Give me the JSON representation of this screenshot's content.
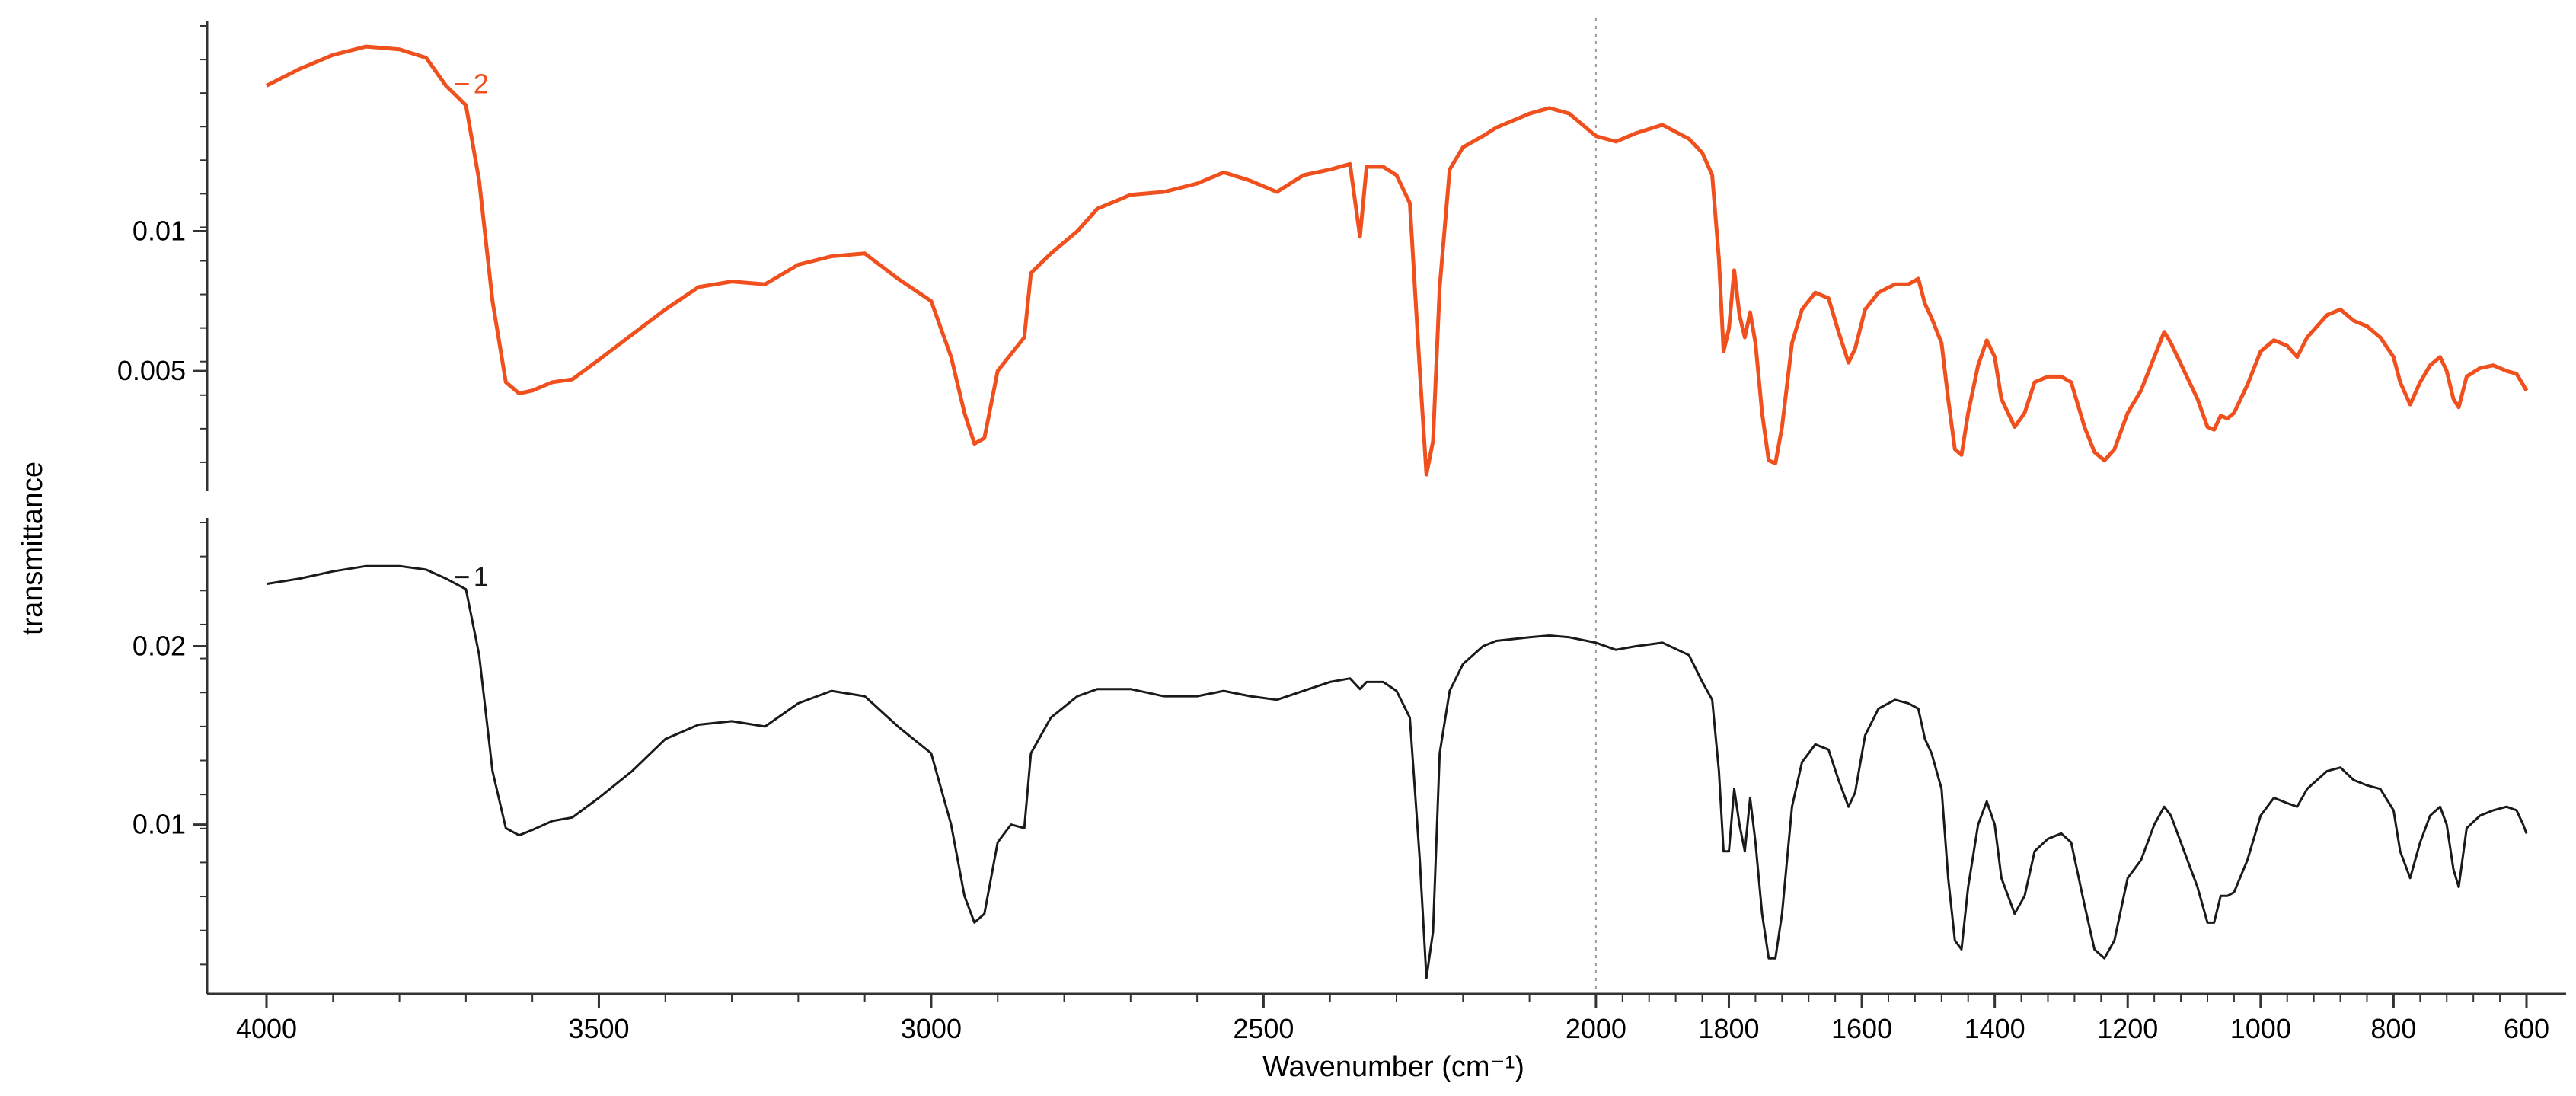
{
  "chart_data": {
    "type": "line",
    "xlabel": "Wavenumber (cm⁻¹)",
    "ylabel": "transmittance",
    "x_reversed": true,
    "xlim": [
      4000,
      600
    ],
    "xticks": [
      4000,
      3500,
      3000,
      2500,
      2000,
      1800,
      1600,
      1400,
      1200,
      1000,
      800,
      600
    ],
    "reference_line": {
      "x": 2000,
      "style": "dotted"
    },
    "panels": [
      {
        "id": "top",
        "series_tag": "2",
        "color": "#f0501e",
        "ylim": [
          0.0007,
          0.0175
        ],
        "yticks": [
          0.005,
          0.01
        ],
        "ytick_labels": [
          "0.005",
          "0.01"
        ],
        "points": [
          [
            4000,
            0.0152
          ],
          [
            3950,
            0.0158
          ],
          [
            3900,
            0.0163
          ],
          [
            3850,
            0.0166
          ],
          [
            3800,
            0.0165
          ],
          [
            3760,
            0.0162
          ],
          [
            3730,
            0.0152
          ],
          [
            3700,
            0.0145
          ],
          [
            3680,
            0.0118
          ],
          [
            3660,
            0.0075
          ],
          [
            3640,
            0.0046
          ],
          [
            3620,
            0.0042
          ],
          [
            3600,
            0.0043
          ],
          [
            3570,
            0.0046
          ],
          [
            3540,
            0.0047
          ],
          [
            3500,
            0.0054
          ],
          [
            3450,
            0.0063
          ],
          [
            3400,
            0.0072
          ],
          [
            3350,
            0.008
          ],
          [
            3300,
            0.0082
          ],
          [
            3250,
            0.0081
          ],
          [
            3200,
            0.0088
          ],
          [
            3150,
            0.0091
          ],
          [
            3100,
            0.0092
          ],
          [
            3050,
            0.0083
          ],
          [
            3000,
            0.0075
          ],
          [
            2970,
            0.0055
          ],
          [
            2950,
            0.0035
          ],
          [
            2935,
            0.0024
          ],
          [
            2920,
            0.0026
          ],
          [
            2900,
            0.005
          ],
          [
            2880,
            0.0056
          ],
          [
            2860,
            0.0062
          ],
          [
            2850,
            0.0085
          ],
          [
            2820,
            0.0092
          ],
          [
            2780,
            0.01
          ],
          [
            2750,
            0.0108
          ],
          [
            2700,
            0.0113
          ],
          [
            2650,
            0.0114
          ],
          [
            2600,
            0.0117
          ],
          [
            2560,
            0.0121
          ],
          [
            2520,
            0.0118
          ],
          [
            2480,
            0.0114
          ],
          [
            2440,
            0.012
          ],
          [
            2400,
            0.0122
          ],
          [
            2370,
            0.0124
          ],
          [
            2355,
            0.0098
          ],
          [
            2345,
            0.0123
          ],
          [
            2320,
            0.0123
          ],
          [
            2300,
            0.012
          ],
          [
            2280,
            0.011
          ],
          [
            2265,
            0.005
          ],
          [
            2255,
            0.0013
          ],
          [
            2245,
            0.0025
          ],
          [
            2235,
            0.008
          ],
          [
            2220,
            0.0122
          ],
          [
            2200,
            0.013
          ],
          [
            2170,
            0.0134
          ],
          [
            2150,
            0.0137
          ],
          [
            2100,
            0.0142
          ],
          [
            2070,
            0.0144
          ],
          [
            2040,
            0.0142
          ],
          [
            2000,
            0.0134
          ],
          [
            1970,
            0.0132
          ],
          [
            1940,
            0.0135
          ],
          [
            1900,
            0.0138
          ],
          [
            1860,
            0.0133
          ],
          [
            1840,
            0.0128
          ],
          [
            1825,
            0.012
          ],
          [
            1815,
            0.009
          ],
          [
            1808,
            0.0057
          ],
          [
            1800,
            0.0065
          ],
          [
            1792,
            0.0086
          ],
          [
            1784,
            0.007
          ],
          [
            1776,
            0.0062
          ],
          [
            1768,
            0.0071
          ],
          [
            1760,
            0.006
          ],
          [
            1750,
            0.0035
          ],
          [
            1740,
            0.0018
          ],
          [
            1730,
            0.0017
          ],
          [
            1720,
            0.003
          ],
          [
            1705,
            0.006
          ],
          [
            1690,
            0.0072
          ],
          [
            1670,
            0.0078
          ],
          [
            1650,
            0.0076
          ],
          [
            1635,
            0.0064
          ],
          [
            1620,
            0.0053
          ],
          [
            1610,
            0.0058
          ],
          [
            1595,
            0.0072
          ],
          [
            1575,
            0.0078
          ],
          [
            1550,
            0.0081
          ],
          [
            1530,
            0.0081
          ],
          [
            1515,
            0.0083
          ],
          [
            1505,
            0.0074
          ],
          [
            1495,
            0.0069
          ],
          [
            1480,
            0.006
          ],
          [
            1470,
            0.004
          ],
          [
            1460,
            0.0022
          ],
          [
            1450,
            0.002
          ],
          [
            1440,
            0.0035
          ],
          [
            1425,
            0.0052
          ],
          [
            1412,
            0.0061
          ],
          [
            1400,
            0.0055
          ],
          [
            1390,
            0.004
          ],
          [
            1370,
            0.003
          ],
          [
            1355,
            0.0035
          ],
          [
            1340,
            0.0046
          ],
          [
            1320,
            0.0048
          ],
          [
            1300,
            0.0048
          ],
          [
            1285,
            0.0046
          ],
          [
            1265,
            0.003
          ],
          [
            1250,
            0.0021
          ],
          [
            1235,
            0.0018
          ],
          [
            1220,
            0.0022
          ],
          [
            1200,
            0.0035
          ],
          [
            1180,
            0.0043
          ],
          [
            1160,
            0.0055
          ],
          [
            1145,
            0.0064
          ],
          [
            1135,
            0.006
          ],
          [
            1115,
            0.005
          ],
          [
            1095,
            0.004
          ],
          [
            1080,
            0.003
          ],
          [
            1070,
            0.0029
          ],
          [
            1060,
            0.0034
          ],
          [
            1050,
            0.0033
          ],
          [
            1040,
            0.0035
          ],
          [
            1020,
            0.0045
          ],
          [
            1000,
            0.0057
          ],
          [
            980,
            0.0061
          ],
          [
            960,
            0.0059
          ],
          [
            945,
            0.0055
          ],
          [
            930,
            0.0062
          ],
          [
            900,
            0.007
          ],
          [
            880,
            0.0072
          ],
          [
            860,
            0.0068
          ],
          [
            840,
            0.0066
          ],
          [
            820,
            0.0062
          ],
          [
            800,
            0.0055
          ],
          [
            790,
            0.0046
          ],
          [
            775,
            0.0038
          ],
          [
            760,
            0.0046
          ],
          [
            745,
            0.0052
          ],
          [
            730,
            0.0055
          ],
          [
            720,
            0.005
          ],
          [
            710,
            0.004
          ],
          [
            702,
            0.0037
          ],
          [
            690,
            0.0048
          ],
          [
            670,
            0.0051
          ],
          [
            650,
            0.0052
          ],
          [
            630,
            0.005
          ],
          [
            615,
            0.0049
          ],
          [
            605,
            0.0045
          ],
          [
            600,
            0.0043
          ]
        ]
      },
      {
        "id": "bottom",
        "series_tag": "1",
        "color": "#1a1a1a",
        "ylim": [
          0.0005,
          0.0272
        ],
        "yticks": [
          0.01,
          0.02
        ],
        "ytick_labels": [
          "0.01",
          "0.02"
        ],
        "points": [
          [
            4000,
            0.0235
          ],
          [
            3950,
            0.0238
          ],
          [
            3900,
            0.0242
          ],
          [
            3850,
            0.0245
          ],
          [
            3800,
            0.0245
          ],
          [
            3760,
            0.0243
          ],
          [
            3730,
            0.0238
          ],
          [
            3700,
            0.0232
          ],
          [
            3680,
            0.0195
          ],
          [
            3660,
            0.013
          ],
          [
            3640,
            0.0098
          ],
          [
            3620,
            0.0094
          ],
          [
            3600,
            0.0097
          ],
          [
            3570,
            0.0102
          ],
          [
            3540,
            0.0104
          ],
          [
            3500,
            0.0115
          ],
          [
            3450,
            0.013
          ],
          [
            3400,
            0.0148
          ],
          [
            3350,
            0.0156
          ],
          [
            3300,
            0.0158
          ],
          [
            3250,
            0.0155
          ],
          [
            3200,
            0.0168
          ],
          [
            3150,
            0.0175
          ],
          [
            3100,
            0.0172
          ],
          [
            3050,
            0.0155
          ],
          [
            3000,
            0.014
          ],
          [
            2970,
            0.01
          ],
          [
            2950,
            0.006
          ],
          [
            2935,
            0.0045
          ],
          [
            2920,
            0.005
          ],
          [
            2900,
            0.009
          ],
          [
            2880,
            0.01
          ],
          [
            2860,
            0.0098
          ],
          [
            2850,
            0.014
          ],
          [
            2820,
            0.016
          ],
          [
            2780,
            0.0172
          ],
          [
            2750,
            0.0176
          ],
          [
            2700,
            0.0176
          ],
          [
            2650,
            0.0172
          ],
          [
            2600,
            0.0172
          ],
          [
            2560,
            0.0175
          ],
          [
            2520,
            0.0172
          ],
          [
            2480,
            0.017
          ],
          [
            2440,
            0.0175
          ],
          [
            2400,
            0.018
          ],
          [
            2370,
            0.0182
          ],
          [
            2355,
            0.0176
          ],
          [
            2345,
            0.018
          ],
          [
            2320,
            0.018
          ],
          [
            2300,
            0.0175
          ],
          [
            2280,
            0.016
          ],
          [
            2265,
            0.008
          ],
          [
            2255,
            0.0014
          ],
          [
            2245,
            0.004
          ],
          [
            2235,
            0.014
          ],
          [
            2220,
            0.0175
          ],
          [
            2200,
            0.019
          ],
          [
            2170,
            0.02
          ],
          [
            2150,
            0.0203
          ],
          [
            2100,
            0.0205
          ],
          [
            2070,
            0.0206
          ],
          [
            2040,
            0.0205
          ],
          [
            2000,
            0.0202
          ],
          [
            1970,
            0.0198
          ],
          [
            1940,
            0.02
          ],
          [
            1900,
            0.0202
          ],
          [
            1860,
            0.0195
          ],
          [
            1840,
            0.018
          ],
          [
            1825,
            0.017
          ],
          [
            1815,
            0.013
          ],
          [
            1808,
            0.0085
          ],
          [
            1800,
            0.0085
          ],
          [
            1792,
            0.012
          ],
          [
            1784,
            0.01
          ],
          [
            1776,
            0.0085
          ],
          [
            1768,
            0.0115
          ],
          [
            1760,
            0.009
          ],
          [
            1750,
            0.005
          ],
          [
            1740,
            0.0025
          ],
          [
            1730,
            0.0025
          ],
          [
            1720,
            0.005
          ],
          [
            1705,
            0.011
          ],
          [
            1690,
            0.0135
          ],
          [
            1670,
            0.0145
          ],
          [
            1650,
            0.0142
          ],
          [
            1635,
            0.0125
          ],
          [
            1620,
            0.011
          ],
          [
            1610,
            0.0118
          ],
          [
            1595,
            0.015
          ],
          [
            1575,
            0.0165
          ],
          [
            1550,
            0.017
          ],
          [
            1530,
            0.0168
          ],
          [
            1515,
            0.0165
          ],
          [
            1505,
            0.0148
          ],
          [
            1495,
            0.014
          ],
          [
            1480,
            0.012
          ],
          [
            1470,
            0.007
          ],
          [
            1460,
            0.0035
          ],
          [
            1450,
            0.003
          ],
          [
            1440,
            0.0065
          ],
          [
            1425,
            0.01
          ],
          [
            1412,
            0.0113
          ],
          [
            1400,
            0.01
          ],
          [
            1390,
            0.007
          ],
          [
            1370,
            0.005
          ],
          [
            1355,
            0.006
          ],
          [
            1340,
            0.0085
          ],
          [
            1320,
            0.0092
          ],
          [
            1300,
            0.0095
          ],
          [
            1285,
            0.009
          ],
          [
            1265,
            0.0055
          ],
          [
            1250,
            0.003
          ],
          [
            1235,
            0.0025
          ],
          [
            1220,
            0.0035
          ],
          [
            1200,
            0.007
          ],
          [
            1180,
            0.008
          ],
          [
            1160,
            0.01
          ],
          [
            1145,
            0.011
          ],
          [
            1135,
            0.0105
          ],
          [
            1115,
            0.0085
          ],
          [
            1095,
            0.0065
          ],
          [
            1080,
            0.0045
          ],
          [
            1070,
            0.0045
          ],
          [
            1060,
            0.006
          ],
          [
            1050,
            0.006
          ],
          [
            1040,
            0.0062
          ],
          [
            1020,
            0.008
          ],
          [
            1000,
            0.0105
          ],
          [
            980,
            0.0115
          ],
          [
            960,
            0.0112
          ],
          [
            945,
            0.011
          ],
          [
            930,
            0.012
          ],
          [
            900,
            0.013
          ],
          [
            880,
            0.0132
          ],
          [
            860,
            0.0125
          ],
          [
            840,
            0.0122
          ],
          [
            820,
            0.012
          ],
          [
            800,
            0.0108
          ],
          [
            790,
            0.0085
          ],
          [
            775,
            0.007
          ],
          [
            760,
            0.009
          ],
          [
            745,
            0.0105
          ],
          [
            730,
            0.011
          ],
          [
            720,
            0.01
          ],
          [
            710,
            0.0075
          ],
          [
            702,
            0.0065
          ],
          [
            690,
            0.0098
          ],
          [
            670,
            0.0105
          ],
          [
            650,
            0.0108
          ],
          [
            630,
            0.011
          ],
          [
            615,
            0.0108
          ],
          [
            605,
            0.01
          ],
          [
            600,
            0.0095
          ]
        ]
      }
    ]
  }
}
